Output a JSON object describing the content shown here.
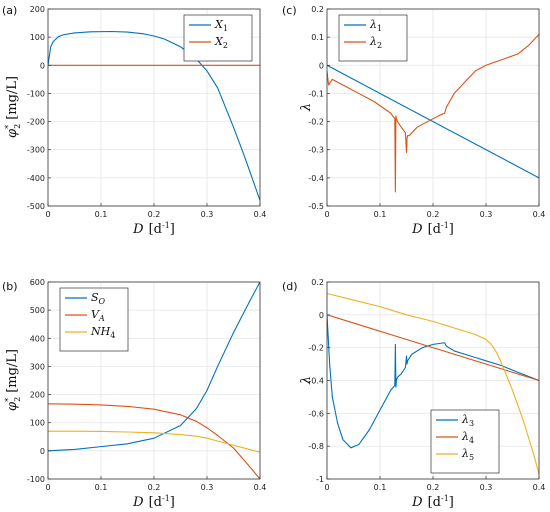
{
  "colors": {
    "blue": "#0072BD",
    "orange": "#D95319",
    "yellow": "#EDB120"
  },
  "chart_data": [
    {
      "panel": "(a)",
      "type": "line",
      "xlabel": "D [d^-1]",
      "ylabel": "φ2* [mg/L]",
      "xlim": [
        0,
        0.4
      ],
      "ylim": [
        -500,
        200
      ],
      "xticks": [
        0,
        0.1,
        0.2,
        0.3,
        0.4
      ],
      "yticks": [
        -500,
        -400,
        -300,
        -200,
        -100,
        0,
        100,
        200
      ],
      "grid": true,
      "legend_position": "top-right",
      "series": [
        {
          "name": "X1",
          "color": "#0072BD",
          "x": [
            0,
            0.005,
            0.01,
            0.02,
            0.03,
            0.05,
            0.08,
            0.12,
            0.15,
            0.18,
            0.2,
            0.22,
            0.25,
            0.28,
            0.3,
            0.32,
            0.35,
            0.37,
            0.4
          ],
          "y": [
            0,
            65,
            85,
            102,
            109,
            115,
            119,
            120,
            118,
            112,
            104,
            93,
            66,
            22,
            -20,
            -80,
            -220,
            -320,
            -480
          ]
        },
        {
          "name": "X2",
          "color": "#D95319",
          "x": [
            0,
            0.4
          ],
          "y": [
            0,
            0
          ]
        }
      ]
    },
    {
      "panel": "(c)",
      "type": "line",
      "xlabel": "D [d^-1]",
      "ylabel": "λ",
      "xlim": [
        0,
        0.4
      ],
      "ylim": [
        -0.5,
        0.2
      ],
      "xticks": [
        0,
        0.1,
        0.2,
        0.3,
        0.4
      ],
      "yticks": [
        -0.5,
        -0.4,
        -0.3,
        -0.2,
        -0.1,
        0,
        0.1,
        0.2
      ],
      "grid": true,
      "legend_position": "top-left",
      "series": [
        {
          "name": "λ1",
          "color": "#0072BD",
          "x": [
            0,
            0.4
          ],
          "y": [
            0,
            -0.4
          ]
        },
        {
          "name": "λ2",
          "color": "#D95319",
          "x": [
            0,
            0.003,
            0.01,
            0.03,
            0.06,
            0.09,
            0.12,
            0.128,
            0.129,
            0.13,
            0.131,
            0.133,
            0.14,
            0.148,
            0.15,
            0.151,
            0.152,
            0.155,
            0.17,
            0.19,
            0.21,
            0.222,
            0.225,
            0.24,
            0.26,
            0.28,
            0.3,
            0.33,
            0.36,
            0.38,
            0.4
          ],
          "y": [
            -0.02,
            -0.07,
            -0.05,
            -0.07,
            -0.1,
            -0.13,
            -0.17,
            -0.19,
            -0.45,
            -0.18,
            -0.19,
            -0.2,
            -0.22,
            -0.24,
            -0.31,
            -0.26,
            -0.25,
            -0.25,
            -0.22,
            -0.2,
            -0.18,
            -0.17,
            -0.15,
            -0.1,
            -0.06,
            -0.02,
            0.0,
            0.02,
            0.04,
            0.07,
            0.11
          ]
        }
      ]
    },
    {
      "panel": "(b)",
      "type": "line",
      "xlabel": "D [d^-1]",
      "ylabel": "φ2* [mg/L]",
      "xlim": [
        0,
        0.4
      ],
      "ylim": [
        -100,
        600
      ],
      "xticks": [
        0,
        0.1,
        0.2,
        0.3,
        0.4
      ],
      "yticks": [
        -100,
        0,
        100,
        200,
        300,
        400,
        500,
        600
      ],
      "grid": true,
      "legend_position": "top-left",
      "series": [
        {
          "name": "SO",
          "color": "#0072BD",
          "x": [
            0,
            0.05,
            0.1,
            0.15,
            0.2,
            0.25,
            0.28,
            0.3,
            0.32,
            0.35,
            0.38,
            0.4
          ],
          "y": [
            0,
            5,
            15,
            25,
            45,
            90,
            150,
            215,
            300,
            420,
            530,
            600
          ]
        },
        {
          "name": "VA",
          "color": "#D95319",
          "x": [
            0,
            0.05,
            0.1,
            0.15,
            0.2,
            0.25,
            0.28,
            0.3,
            0.32,
            0.35,
            0.38,
            0.4
          ],
          "y": [
            167,
            166,
            163,
            158,
            148,
            128,
            105,
            82,
            55,
            10,
            -55,
            -100
          ]
        },
        {
          "name": "NH4",
          "color": "#EDB120",
          "x": [
            0,
            0.05,
            0.1,
            0.15,
            0.2,
            0.25,
            0.28,
            0.3,
            0.32,
            0.35,
            0.38,
            0.4
          ],
          "y": [
            70,
            70,
            69,
            67,
            64,
            58,
            52,
            45,
            35,
            20,
            5,
            -5
          ]
        }
      ]
    },
    {
      "panel": "(d)",
      "type": "line",
      "xlabel": "D [d^-1]",
      "ylabel": "λ",
      "xlim": [
        0,
        0.4
      ],
      "ylim": [
        -1,
        0.2
      ],
      "xticks": [
        0,
        0.1,
        0.2,
        0.3,
        0.4
      ],
      "yticks": [
        -1,
        -0.8,
        -0.6,
        -0.4,
        -0.2,
        0,
        0.2
      ],
      "grid": true,
      "legend_position": "bottom-right",
      "series": [
        {
          "name": "λ3",
          "color": "#0072BD",
          "x": [
            0,
            0.005,
            0.01,
            0.02,
            0.03,
            0.045,
            0.06,
            0.08,
            0.1,
            0.12,
            0.128,
            0.129,
            0.13,
            0.131,
            0.133,
            0.14,
            0.148,
            0.15,
            0.151,
            0.152,
            0.16,
            0.18,
            0.2,
            0.222,
            0.225,
            0.24,
            0.26,
            0.28,
            0.3,
            0.33,
            0.36,
            0.4
          ],
          "y": [
            0,
            -0.3,
            -0.5,
            -0.66,
            -0.76,
            -0.81,
            -0.79,
            -0.7,
            -0.58,
            -0.46,
            -0.43,
            -0.18,
            -0.44,
            -0.4,
            -0.38,
            -0.36,
            -0.32,
            -0.25,
            -0.3,
            -0.28,
            -0.24,
            -0.2,
            -0.18,
            -0.17,
            -0.19,
            -0.22,
            -0.24,
            -0.26,
            -0.28,
            -0.31,
            -0.35,
            -0.4
          ]
        },
        {
          "name": "λ4",
          "color": "#D95319",
          "x": [
            0,
            0.4
          ],
          "y": [
            0,
            -0.4
          ]
        },
        {
          "name": "λ5",
          "color": "#EDB120",
          "x": [
            0,
            0.05,
            0.1,
            0.15,
            0.2,
            0.25,
            0.28,
            0.3,
            0.31,
            0.32,
            0.33,
            0.35,
            0.37,
            0.39,
            0.4
          ],
          "y": [
            0.13,
            0.09,
            0.05,
            0.0,
            -0.04,
            -0.09,
            -0.12,
            -0.15,
            -0.18,
            -0.23,
            -0.3,
            -0.46,
            -0.64,
            -0.85,
            -0.97
          ]
        }
      ]
    }
  ]
}
